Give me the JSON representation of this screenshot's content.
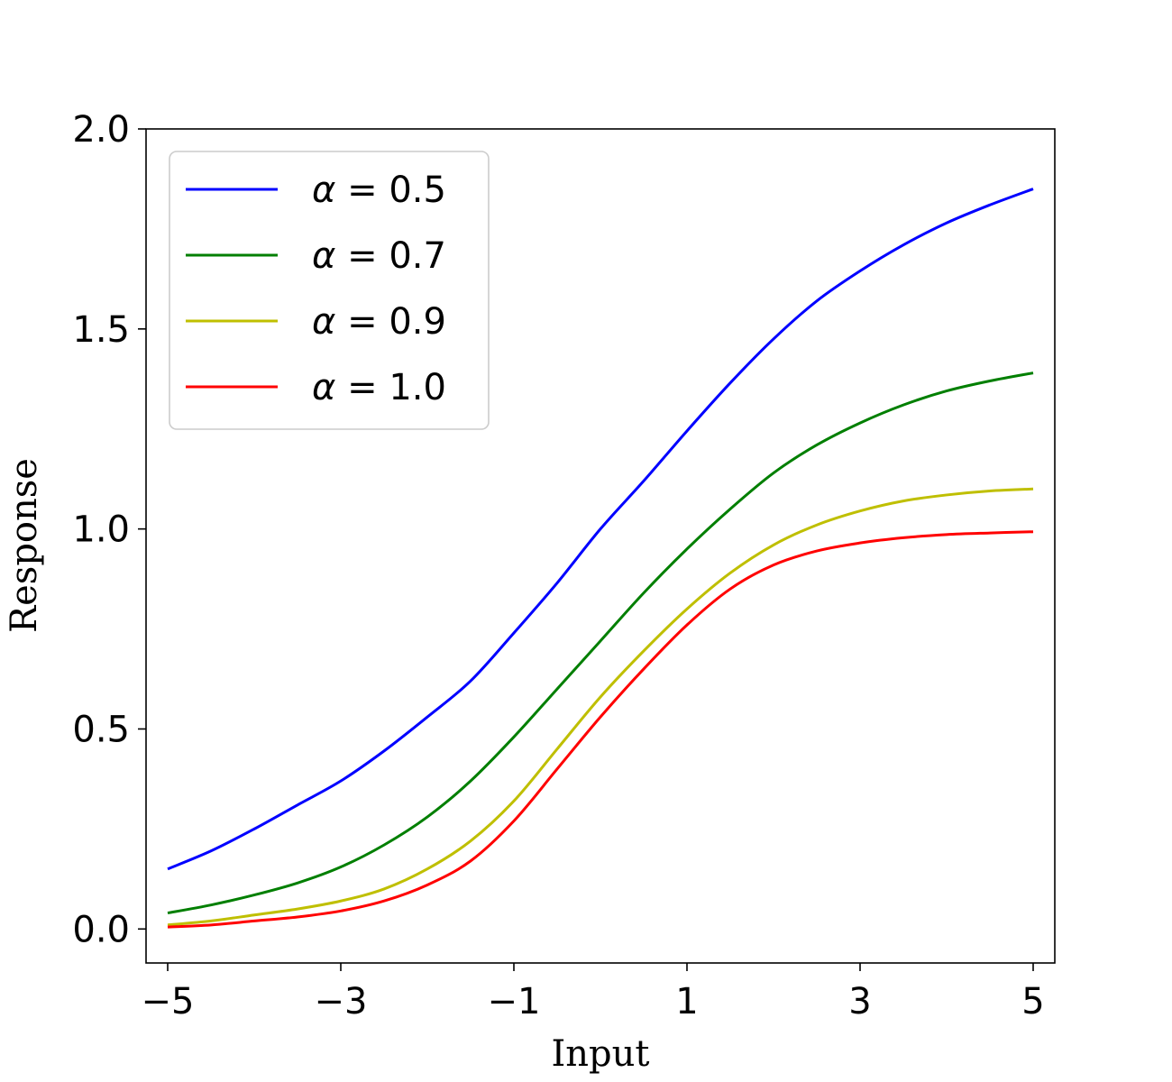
{
  "chart_data": {
    "type": "line",
    "title": "",
    "xlabel": "Input",
    "ylabel": "Response",
    "xlim": [
      -5.25,
      5.25
    ],
    "ylim": [
      -0.085,
      2.0
    ],
    "xticks": [
      -5,
      -3,
      -1,
      1,
      3,
      5
    ],
    "xtick_labels": [
      "−5",
      "−3",
      "−1",
      "1",
      "3",
      "5"
    ],
    "yticks": [
      0.0,
      0.5,
      1.0,
      1.5,
      2.0
    ],
    "ytick_labels": [
      "0.0",
      "0.5",
      "1.0",
      "1.5",
      "2.0"
    ],
    "grid": false,
    "legend_position": "upper-left",
    "x": [
      -5,
      -4.5,
      -4,
      -3.5,
      -3,
      -2.5,
      -2,
      -1.5,
      -1,
      -0.5,
      0,
      0.5,
      1,
      1.5,
      2,
      2.5,
      3,
      3.5,
      4,
      4.5,
      5
    ],
    "series": [
      {
        "name": "α = 0.5",
        "legend_greek": "α",
        "legend_rest": " = 0.5",
        "color": "#0000ff",
        "values": [
          0.15,
          0.195,
          0.25,
          0.31,
          0.37,
          0.445,
          0.53,
          0.62,
          0.74,
          0.865,
          1.0,
          1.12,
          1.245,
          1.365,
          1.475,
          1.57,
          1.645,
          1.71,
          1.765,
          1.81,
          1.85
        ]
      },
      {
        "name": "α = 0.7",
        "legend_greek": "α",
        "legend_rest": " = 0.7",
        "color": "#007f00",
        "values": [
          0.04,
          0.06,
          0.085,
          0.115,
          0.155,
          0.21,
          0.28,
          0.37,
          0.48,
          0.6,
          0.72,
          0.84,
          0.95,
          1.05,
          1.14,
          1.21,
          1.265,
          1.31,
          1.345,
          1.37,
          1.39
        ]
      },
      {
        "name": "α = 0.9",
        "legend_greek": "α",
        "legend_rest": " = 0.9",
        "color": "#bfbf00",
        "values": [
          0.01,
          0.02,
          0.035,
          0.05,
          0.07,
          0.1,
          0.15,
          0.22,
          0.32,
          0.45,
          0.58,
          0.695,
          0.8,
          0.89,
          0.96,
          1.01,
          1.045,
          1.07,
          1.085,
          1.095,
          1.1
        ]
      },
      {
        "name": "α = 1.0",
        "legend_greek": "α",
        "legend_rest": " = 1.0",
        "color": "#ff0000",
        "values": [
          0.005,
          0.01,
          0.02,
          0.03,
          0.045,
          0.07,
          0.11,
          0.17,
          0.27,
          0.4,
          0.53,
          0.65,
          0.76,
          0.85,
          0.91,
          0.945,
          0.965,
          0.978,
          0.986,
          0.99,
          0.993
        ]
      }
    ]
  }
}
